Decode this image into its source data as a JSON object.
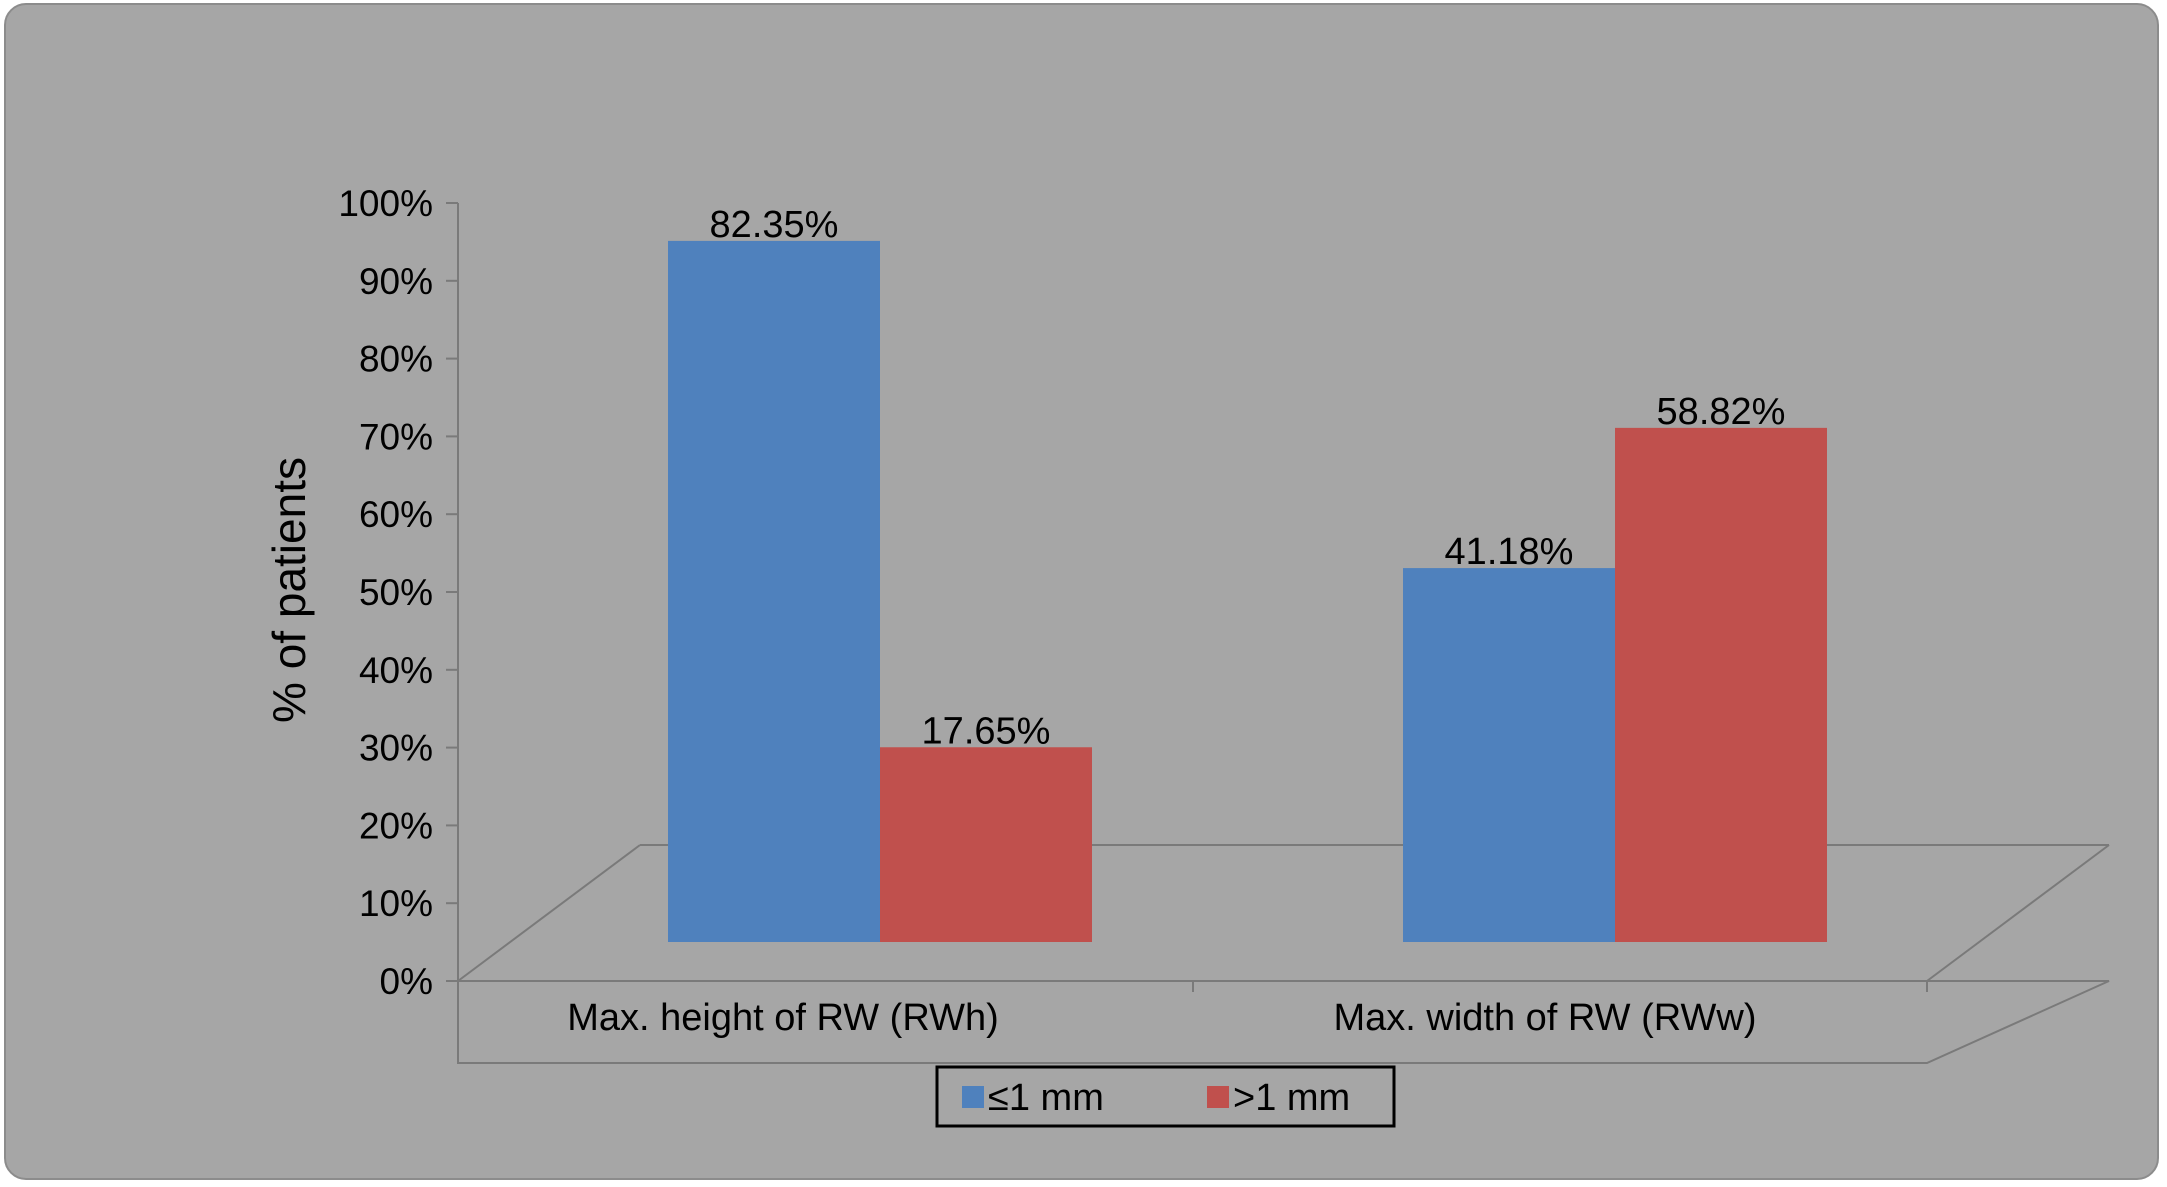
{
  "chart_data": {
    "type": "bar",
    "title": "",
    "xlabel": "",
    "ylabel": "% of patients",
    "ylim": [
      0,
      100
    ],
    "yticks": [
      "0%",
      "10%",
      "20%",
      "30%",
      "40%",
      "50%",
      "60%",
      "70%",
      "80%",
      "90%",
      "100%"
    ],
    "categories": [
      "Max. height of RW (RWh)",
      "Max. width of RW (RWw)"
    ],
    "series": [
      {
        "name": "≤1 mm",
        "color": "#4f81bd",
        "values": [
          82.35,
          41.18
        ],
        "labels": [
          "82.35%",
          "41.18%"
        ],
        "display_values": [
          90,
          48
        ]
      },
      {
        "name": ">1 mm",
        "color": "#c0504d",
        "values": [
          17.65,
          58.82
        ],
        "labels": [
          "17.65%",
          "58.82%"
        ],
        "display_values": [
          25,
          66
        ]
      }
    ],
    "legend": "bottom",
    "grid": false,
    "style": "3d-floor"
  }
}
